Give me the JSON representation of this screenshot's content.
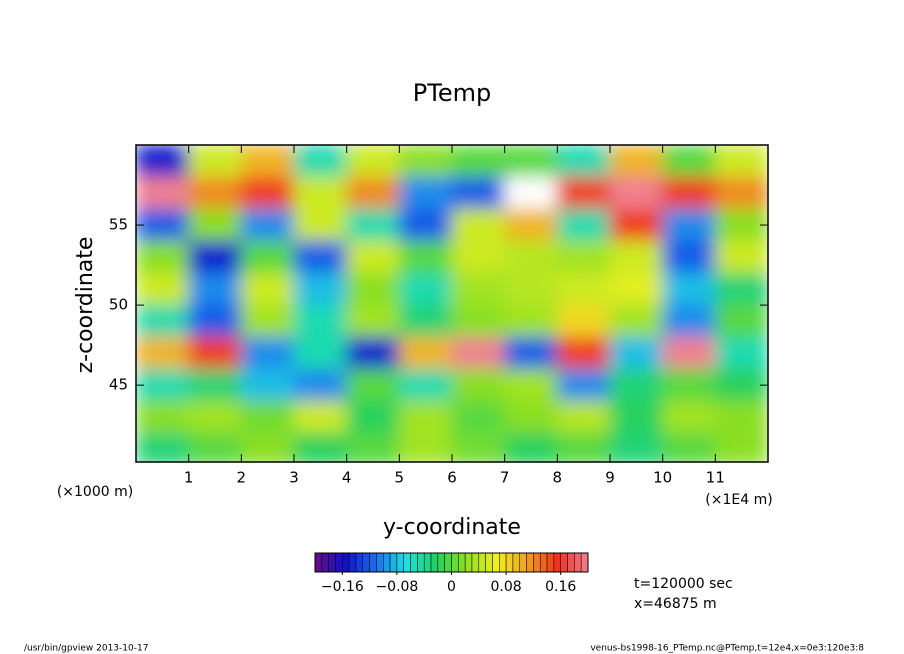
{
  "chart_data": {
    "type": "heatmap",
    "title": "PTemp",
    "x_label": "y-coordinate",
    "y_label": "z-coordinate",
    "x_unit": "(×1E4 m)",
    "y_unit": "(×1000 m)",
    "x": [
      0.5,
      1.5,
      2.5,
      3.5,
      4.5,
      5.5,
      6.5,
      7.5,
      8.5,
      9.5,
      10.5,
      11.5
    ],
    "y": [
      59,
      57,
      55,
      53,
      51,
      49,
      47,
      45,
      43,
      41
    ],
    "values": [
      [
        -0.15,
        0.05,
        0.1,
        -0.05,
        0.05,
        0.02,
        0,
        0,
        -0.05,
        0.1,
        0,
        0.05
      ],
      [
        0.2,
        0.12,
        0.15,
        0.05,
        0.12,
        -0.1,
        -0.12,
        0.25,
        0.15,
        0.2,
        0.15,
        0.12
      ],
      [
        -0.12,
        0.02,
        -0.1,
        0.05,
        -0.05,
        -0.12,
        0.05,
        0.1,
        -0.05,
        0.15,
        -0.1,
        0.02
      ],
      [
        0.02,
        -0.15,
        0,
        -0.12,
        0.05,
        0,
        0.05,
        0.04,
        0.03,
        0.05,
        -0.12,
        0.05
      ],
      [
        0.05,
        -0.1,
        0.05,
        -0.08,
        0.02,
        -0.05,
        0.03,
        0.04,
        0.05,
        0.06,
        -0.08,
        -0.03
      ],
      [
        -0.05,
        -0.12,
        0.03,
        -0.05,
        0.03,
        -0.03,
        0.02,
        0.03,
        0.08,
        0.03,
        -0.1,
        0
      ],
      [
        0.1,
        0.15,
        -0.1,
        -0.05,
        -0.15,
        0.1,
        0.2,
        -0.12,
        0.15,
        -0.08,
        0.2,
        -0.05
      ],
      [
        -0.05,
        -0.03,
        -0.08,
        -0.1,
        0,
        -0.05,
        0.02,
        0.03,
        -0.1,
        -0.03,
        0,
        -0.02
      ],
      [
        0.02,
        0.03,
        0.01,
        0.05,
        -0.02,
        0.03,
        0,
        0.02,
        0.04,
        -0.02,
        0.03,
        0.02
      ],
      [
        -0.03,
        0,
        0.02,
        -0.02,
        0,
        0.03,
        0.01,
        -0.02,
        0,
        -0.03,
        0,
        0.02
      ]
    ],
    "xlim": [
      0,
      12
    ],
    "ylim": [
      40.2,
      60
    ],
    "xticks": [
      1,
      2,
      3,
      4,
      5,
      6,
      7,
      8,
      9,
      10,
      11
    ],
    "yticks": [
      45,
      50,
      55
    ],
    "clim": [
      -0.2,
      0.2
    ],
    "cticks": [
      {
        "value": -0.16,
        "label": "−0.16"
      },
      {
        "value": -0.08,
        "label": "−0.08"
      },
      0,
      0.08,
      0.16
    ],
    "colormap": [
      "#6a0d8a",
      "#1010c8",
      "#1a6ef0",
      "#1ee0e0",
      "#20d060",
      "#90e020",
      "#f0f020",
      "#f0a020",
      "#f03020",
      "#f08090"
    ],
    "out_of_range_color": "#ffffff",
    "annotations": [
      "t=120000 sec",
      "x=46875 m"
    ],
    "footer_left": "/usr/bin/gpview  2013-10-17",
    "footer_right": "venus-bs1998-16_PTemp.nc@PTemp,t=12e4,x=0e3:120e3:8"
  }
}
